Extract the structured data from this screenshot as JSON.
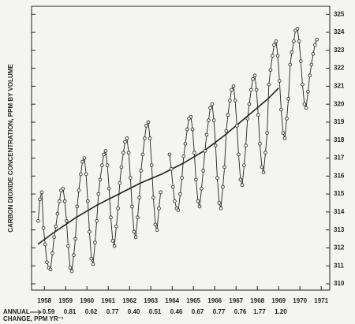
{
  "chart_data": {
    "type": "line",
    "y_label": "CARBON DIOXIDE CONCENTRATION, PPM BY VOLUME",
    "xlim": [
      1957.9,
      1971.9
    ],
    "ylim": [
      309.65,
      325.45
    ],
    "yticks": [
      310,
      311,
      312,
      313,
      314,
      315,
      316,
      317,
      318,
      319,
      320,
      321,
      322,
      323,
      324,
      325
    ],
    "xticks": [
      {
        "value": 1958.5,
        "label": "1958"
      },
      {
        "value": 1959.5,
        "label": "1959"
      },
      {
        "value": 1960.5,
        "label": "1960"
      },
      {
        "value": 1961.5,
        "label": "1961"
      },
      {
        "value": 1962.5,
        "label": "1962"
      },
      {
        "value": 1963.5,
        "label": "1963"
      },
      {
        "value": 1964.5,
        "label": "1964"
      },
      {
        "value": 1965.5,
        "label": "1965"
      },
      {
        "value": 1966.5,
        "label": "1966"
      },
      {
        "value": 1967.5,
        "label": "1967"
      },
      {
        "value": 1968.5,
        "label": "1968"
      },
      {
        "value": 1969.5,
        "label": "1969"
      },
      {
        "value": 1970.5,
        "label": "1970"
      },
      {
        "value": 1971.5,
        "label": "1971"
      }
    ],
    "color": "#222222",
    "x": [
      1958.21,
      1958.29,
      1958.38,
      1958.46,
      1958.54,
      1958.62,
      1958.71,
      1958.79,
      1958.88,
      1958.96,
      1959.04,
      1959.12,
      1959.21,
      1959.29,
      1959.38,
      1959.46,
      1959.54,
      1959.62,
      1959.71,
      1959.79,
      1959.88,
      1959.96,
      1960.04,
      1960.12,
      1960.21,
      1960.29,
      1960.38,
      1960.46,
      1960.54,
      1960.62,
      1960.71,
      1960.79,
      1960.88,
      1960.96,
      1961.04,
      1961.12,
      1961.21,
      1961.29,
      1961.38,
      1961.46,
      1961.54,
      1961.62,
      1961.71,
      1961.79,
      1961.88,
      1961.96,
      1962.04,
      1962.12,
      1962.21,
      1962.29,
      1962.38,
      1962.46,
      1962.54,
      1962.62,
      1962.71,
      1962.79,
      1962.88,
      1962.96,
      1963.04,
      1963.12,
      1963.21,
      1963.29,
      1963.38,
      1963.46,
      1963.54,
      1963.62,
      1963.71,
      1963.79,
      1963.88,
      1963.96,
      1964.04,
      1964.12,
      1964.21,
      1964.29,
      1964.38,
      1964.46,
      1964.54,
      1964.62,
      1964.71,
      1964.79,
      1964.88,
      1964.96,
      1965.04,
      1965.12,
      1965.21,
      1965.29,
      1965.38,
      1965.46,
      1965.54,
      1965.62,
      1965.71,
      1965.79,
      1965.88,
      1965.96,
      1966.04,
      1966.12,
      1966.21,
      1966.29,
      1966.38,
      1966.46,
      1966.54,
      1966.62,
      1966.71,
      1966.79,
      1966.88,
      1966.96,
      1967.04,
      1967.12,
      1967.21,
      1967.29,
      1967.38,
      1967.46,
      1967.54,
      1967.62,
      1967.71,
      1967.79,
      1967.88,
      1967.96,
      1968.04,
      1968.12,
      1968.21,
      1968.29,
      1968.38,
      1968.46,
      1968.54,
      1968.62,
      1968.71,
      1968.79,
      1968.88,
      1968.96,
      1969.04,
      1969.12,
      1969.21,
      1969.29,
      1969.38,
      1969.46,
      1969.54,
      1969.62,
      1969.71,
      1969.79,
      1969.88,
      1969.96,
      1970.04,
      1970.12,
      1970.21,
      1970.29,
      1970.38,
      1970.46,
      1970.54,
      1970.62,
      1970.71,
      1970.79,
      1970.88,
      1970.96,
      1971.04,
      1971.12,
      1971.21,
      1971.29
    ],
    "values": [
      313.5,
      314.7,
      315.1,
      313.1,
      312.2,
      311.2,
      310.9,
      310.8,
      311.7,
      312.6,
      313.2,
      313.9,
      314.6,
      315.2,
      315.3,
      314.6,
      313.5,
      312.1,
      310.9,
      310.7,
      311.6,
      312.5,
      314.3,
      315.2,
      316.1,
      316.8,
      317.0,
      316.1,
      314.6,
      312.9,
      311.4,
      311.1,
      312.3,
      313.5,
      315.0,
      315.8,
      316.6,
      317.2,
      317.4,
      316.6,
      315.3,
      313.7,
      312.4,
      312.1,
      313.2,
      314.2,
      315.6,
      316.5,
      317.3,
      317.9,
      318.1,
      317.3,
      315.9,
      314.3,
      312.9,
      312.6,
      313.7,
      314.8,
      316.3,
      317.2,
      318.1,
      318.8,
      319.0,
      318.1,
      316.6,
      314.8,
      313.3,
      313.0,
      314.2,
      315.1,
      null,
      null,
      null,
      null,
      317.2,
      316.4,
      315.4,
      314.6,
      314.2,
      314.1,
      315.0,
      315.9,
      317.1,
      317.8,
      318.6,
      319.2,
      319.3,
      318.6,
      317.3,
      315.8,
      314.6,
      314.3,
      315.3,
      316.3,
      317.4,
      318.3,
      319.1,
      319.8,
      320.0,
      319.1,
      317.7,
      315.9,
      314.5,
      314.2,
      315.4,
      316.5,
      318.5,
      319.4,
      320.2,
      320.8,
      321.0,
      320.2,
      318.8,
      317.2,
      315.8,
      315.5,
      316.6,
      317.7,
      319.2,
      320.0,
      320.8,
      321.4,
      321.6,
      320.8,
      319.4,
      317.8,
      316.5,
      316.2,
      317.3,
      318.4,
      321.1,
      321.9,
      322.7,
      323.3,
      323.5,
      322.7,
      321.3,
      319.7,
      318.4,
      318.1,
      319.2,
      320.3,
      322.2,
      322.9,
      323.5,
      324.1,
      324.2,
      323.5,
      322.4,
      321.1,
      320.0,
      319.8,
      320.7,
      321.6,
      322.2,
      322.8,
      323.3,
      323.6
    ],
    "trend": {
      "x": [
        1958.2,
        1959,
        1960,
        1961,
        1962,
        1963,
        1964,
        1965,
        1966,
        1967,
        1968,
        1969,
        1969.5
      ],
      "values": [
        312.2,
        312.9,
        313.7,
        314.4,
        315.0,
        315.6,
        316.1,
        316.7,
        317.4,
        318.3,
        319.3,
        320.3,
        320.9
      ]
    },
    "annual_change_label": "ANNUAL",
    "annual_change_label2": "CHANGE, PPM YR⁻¹",
    "annual_change": {
      "x": [
        1958.7,
        1959.7,
        1960.7,
        1961.7,
        1962.7,
        1963.7,
        1964.7,
        1965.7,
        1966.7,
        1967.7,
        1968.6,
        1969.6
      ],
      "values": [
        0.59,
        0.81,
        0.62,
        0.77,
        0.4,
        0.51,
        0.46,
        0.67,
        0.77,
        0.76,
        1.77,
        1.2
      ],
      "value_labels": [
        "0.59",
        "0.81",
        "0.62",
        "0.77",
        "0.40",
        "0.51",
        "0.46",
        "0.67",
        "0.77",
        "0.76",
        "1.77",
        "1.20"
      ]
    }
  }
}
